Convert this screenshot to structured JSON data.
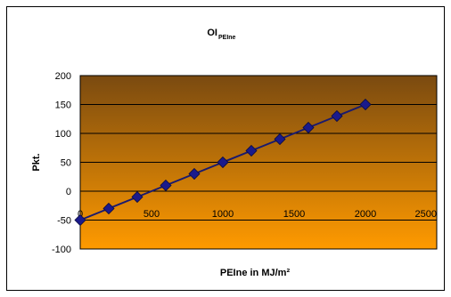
{
  "chart_data": {
    "type": "line",
    "title_main": "OI",
    "title_sub": "PEIne",
    "xlabel": "PEIne in MJ/m²",
    "ylabel": "Pkt.",
    "xlim": [
      0,
      2500
    ],
    "ylim": [
      -100,
      200
    ],
    "x_ticks": [
      0,
      500,
      1000,
      1500,
      2000,
      2500
    ],
    "y_ticks": [
      200,
      150,
      100,
      50,
      0,
      -50,
      -100
    ],
    "grid": true,
    "legend": "none",
    "series": [
      {
        "x": [
          0,
          200,
          400,
          600,
          800,
          1000,
          1200,
          1400,
          1600,
          1800,
          2000
        ],
        "y": [
          -50,
          -30,
          -10,
          10,
          30,
          50,
          70,
          90,
          110,
          130,
          150
        ]
      }
    ],
    "colors": {
      "line": "#1a1a6e",
      "marker": "#1a1a8c",
      "plot_top": "#7a4a10",
      "plot_bottom": "#ff9a00",
      "grid": "#000000",
      "frame": "#000000"
    }
  }
}
